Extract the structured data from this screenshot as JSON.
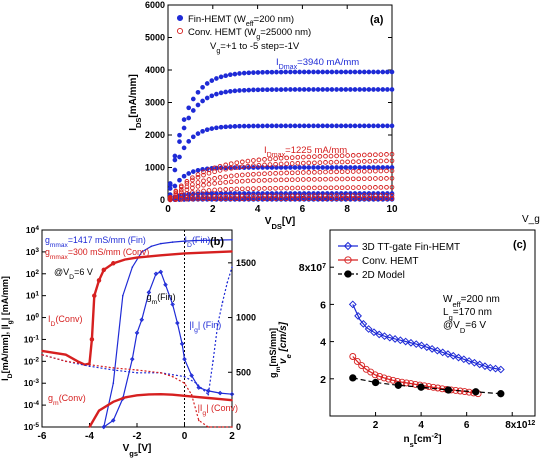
{
  "chart_data": [
    {
      "panel": "(a)",
      "type": "scatter",
      "xlabel": "V_DS[V]",
      "ylabel": "I_DS[mA/mm]",
      "xlim": [
        0,
        10
      ],
      "ylim": [
        0,
        6000
      ],
      "xticks": [
        0,
        2,
        4,
        6,
        8,
        10
      ],
      "yticks": [
        0,
        1000,
        2000,
        3000,
        4000,
        5000,
        6000
      ],
      "legend": [
        {
          "label": "Fin-HEMT (W_eff=200 nm)",
          "marker": "filled-circle",
          "color": "#1f2bd6"
        },
        {
          "label": "Conv. HEMT (W_g=25000 nm)",
          "marker": "open-circle",
          "color": "#d62020"
        }
      ],
      "bias_note": "V_g=+1 to -5 step=-1V",
      "annotations": [
        {
          "text": "I_Dmax=3940 mA/mm",
          "color": "#1f2bd6"
        },
        {
          "text": "I_Dmax=1225 mA/mm",
          "color": "#d62020"
        }
      ],
      "series": [
        {
          "name": "Fin-HEMT",
          "style": "filled-circle",
          "color": "#1f2bd6",
          "sat": [
            3940,
            3400,
            2280,
            1000,
            200,
            60,
            20
          ],
          "knee": [
            1.6,
            1.5,
            1.3,
            1.2,
            1.0,
            1.0,
            1.0
          ]
        },
        {
          "name": "Conv. HEMT",
          "style": "open-circle",
          "color": "#d62020",
          "sat": [
            1225,
            1050,
            780,
            580,
            340,
            120,
            40
          ],
          "knee": [
            3.0,
            2.8,
            2.6,
            2.4,
            2.2,
            2.0,
            2.0
          ]
        }
      ]
    },
    {
      "panel": "(b)",
      "type": "line",
      "xlabel": "V_gs[V]",
      "ylabel": "I_D[mA/mm], |I_g| [mA/mm]",
      "ylabel_right": "g_m[mS/mm]",
      "xlim": [
        -6,
        2
      ],
      "ylim_log": [
        -5,
        4
      ],
      "ylim_right": [
        0,
        1800
      ],
      "xticks": [
        -6,
        -4,
        -2,
        0,
        2
      ],
      "yticks_right": [
        0,
        500,
        1000,
        1500
      ],
      "annotations": [
        {
          "text": "g_mmax=1417 mS/mm (Fin)",
          "color": "#1f2bd6"
        },
        {
          "text": "g_mmax=300 mS/mm (Conv)",
          "color": "#d62020"
        },
        {
          "text": "@V_D=6 V",
          "color": "#000000"
        },
        {
          "text": "I_D(Fin)",
          "color": "#1f2bd6"
        },
        {
          "text": "I_D(Conv)",
          "color": "#d62020"
        },
        {
          "text": "g_m(Fin)",
          "color": "#000000"
        },
        {
          "text": "|I_g| (Fin)",
          "color": "#1f2bd6"
        },
        {
          "text": "g_m(Conv)",
          "color": "#d62020"
        },
        {
          "text": "|I_g| (Conv)",
          "color": "#d62020"
        }
      ],
      "series": [
        {
          "name": "I_D(Fin)",
          "color": "#1f2bd6",
          "axis": "log",
          "x": [
            -3.4,
            -3.0,
            -2.6,
            -2.2,
            -1.8,
            -1.4,
            -1.0,
            -0.5,
            0,
            0.5,
            1.0,
            1.5,
            2.0
          ],
          "y": [
            1e-05,
            0.001,
            10,
            200,
            1000,
            1800,
            2400,
            2800,
            3100,
            3300,
            3400,
            3500,
            3550
          ]
        },
        {
          "name": "I_D(Conv)",
          "color": "#d62020",
          "axis": "log",
          "x": [
            -6,
            -5,
            -4.5,
            -4.2,
            -4.0,
            -3.9,
            -3.8,
            -3.6,
            -3.4,
            -3.0,
            -2.5,
            -2.0,
            -1.0,
            0,
            1.0,
            2.0
          ],
          "y": [
            0.03,
            0.02,
            0.01,
            0.007,
            0.008,
            0.1,
            10,
            50,
            150,
            300,
            450,
            550,
            700,
            850,
            950,
            1050
          ]
        },
        {
          "name": "g_m(Fin)",
          "color": "#1f2bd6",
          "axis": "right",
          "x": [
            -3.4,
            -3.0,
            -2.6,
            -2.2,
            -2.0,
            -1.8,
            -1.5,
            -1.2,
            -1.0,
            -0.8,
            -0.5,
            -0.3,
            -0.1,
            0,
            0.3,
            0.6,
            1.0,
            1.5,
            2.0
          ],
          "y": [
            0,
            60,
            260,
            620,
            860,
            980,
            1230,
            1400,
            1417,
            1300,
            1120,
            950,
            760,
            620,
            470,
            360,
            330,
            310,
            300
          ]
        },
        {
          "name": "g_m(Conv)",
          "color": "#d62020",
          "axis": "right",
          "x": [
            -4.0,
            -3.6,
            -3.0,
            -2.5,
            -2.0,
            -1.5,
            -1.0,
            -0.5,
            0,
            0.5,
            1.0,
            1.5,
            2.0
          ],
          "y": [
            0,
            150,
            230,
            270,
            290,
            298,
            300,
            295,
            285,
            275,
            265,
            255,
            245
          ]
        },
        {
          "name": "|I_g|(Fin)",
          "color": "#1f2bd6",
          "axis": "log",
          "x": [
            -6,
            -5,
            -4,
            -3,
            -2,
            -1,
            0,
            0.5,
            1.0,
            1.2,
            1.4,
            1.6,
            1.8,
            2.0
          ],
          "y": [
            0.02,
            0.01,
            0.006,
            0.004,
            0.003,
            0.003,
            0.002,
            0.001,
            0.0003,
            0.01,
            0.5,
            5,
            40,
            200
          ]
        },
        {
          "name": "|I_g|(Conv)",
          "color": "#d62020",
          "axis": "log",
          "x": [
            -6,
            -5,
            -4,
            -3,
            -2,
            -1,
            -0.5,
            0,
            0.3,
            0.6,
            1.0,
            1.5,
            2.0
          ],
          "y": [
            0.02,
            0.01,
            0.007,
            0.005,
            0.004,
            0.003,
            0.002,
            0.001,
            0.0003,
            2e-05,
            1e-05,
            1e-05,
            1e-05
          ]
        }
      ]
    },
    {
      "panel": "(c)",
      "type": "line",
      "xlabel": "n_s[cm^-2]",
      "ylabel": "v_e [cm/s]",
      "ylabel_alt": "g_m[mS/mm]",
      "xlim": [
        0,
        9000000000000.0
      ],
      "ylim": [
        0,
        100000000.0
      ],
      "xticks": [
        2,
        4,
        6,
        8
      ],
      "xtick_unit": "x10^12",
      "yticks": [
        2,
        4,
        6,
        8
      ],
      "ytick_unit": "x10^7",
      "legend": [
        {
          "label": "3D TT-gate Fin-HEMT",
          "marker": "open-diamond",
          "color": "#1f2bd6"
        },
        {
          "label": "Conv. HEMT",
          "marker": "open-circle",
          "color": "#d62020"
        },
        {
          "label": "2D Model",
          "marker": "filled-circle",
          "color": "#000000"
        }
      ],
      "params": [
        "W_eff=200 nm",
        "L_g=170 nm",
        "@V_D=6 V"
      ],
      "series": [
        {
          "name": "3D TT-gate Fin-HEMT",
          "color": "#1f2bd6",
          "x": [
            1.0,
            1.3,
            1.6,
            2.0,
            2.5,
            3.0,
            3.5,
            4.0,
            4.5,
            5.0,
            5.5,
            6.0,
            6.5,
            7.0,
            7.5
          ],
          "y": [
            6.0,
            5.2,
            4.75,
            4.45,
            4.25,
            4.1,
            3.95,
            3.8,
            3.6,
            3.4,
            3.2,
            3.0,
            2.8,
            2.6,
            2.5
          ]
        },
        {
          "name": "Conv. HEMT",
          "color": "#d62020",
          "x": [
            1.0,
            1.3,
            1.6,
            2.0,
            2.5,
            3.0,
            3.5,
            4.0,
            4.5,
            5.0,
            5.5,
            6.0,
            6.5
          ],
          "y": [
            3.2,
            2.8,
            2.5,
            2.2,
            2.0,
            1.85,
            1.75,
            1.65,
            1.55,
            1.45,
            1.38,
            1.3,
            1.2
          ]
        },
        {
          "name": "2D Model",
          "color": "#000000",
          "x": [
            1.0,
            2.0,
            3.0,
            4.0,
            5.2,
            6.4,
            7.5
          ],
          "y": [
            2.05,
            1.8,
            1.65,
            1.55,
            1.4,
            1.3,
            1.2
          ]
        }
      ]
    }
  ],
  "fragment_label": "V_g"
}
